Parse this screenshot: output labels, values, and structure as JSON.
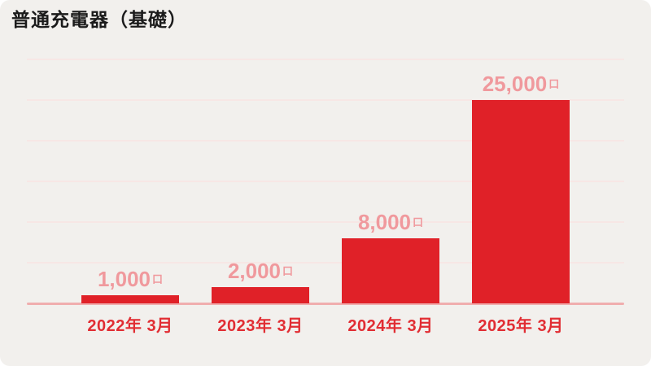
{
  "window": {
    "outer_background": "#ffffff",
    "card_background": "#f2f0ed"
  },
  "title": "普通充電器（基礎）",
  "chart_data": {
    "type": "bar",
    "title": "普通充電器（基礎）",
    "categories": [
      "2022年 3月",
      "2023年 3月",
      "2024年 3月",
      "2025年 3月"
    ],
    "values": [
      1000,
      2000,
      8000,
      25000
    ],
    "value_labels": [
      "1,000",
      "2,000",
      "8,000",
      "25,000"
    ],
    "unit_suffix": "口",
    "xlabel": "",
    "ylabel": "",
    "ylim": [
      0,
      30000
    ],
    "gridline_interval": 5000,
    "grid": true,
    "legend": false,
    "colors": {
      "bar": "#e02128",
      "value_label": "#f0999d",
      "category_label": "#e12d33",
      "gridline": "#f7e7e5",
      "baseline": "#f0aeae",
      "title": "#1b1b1b"
    }
  }
}
